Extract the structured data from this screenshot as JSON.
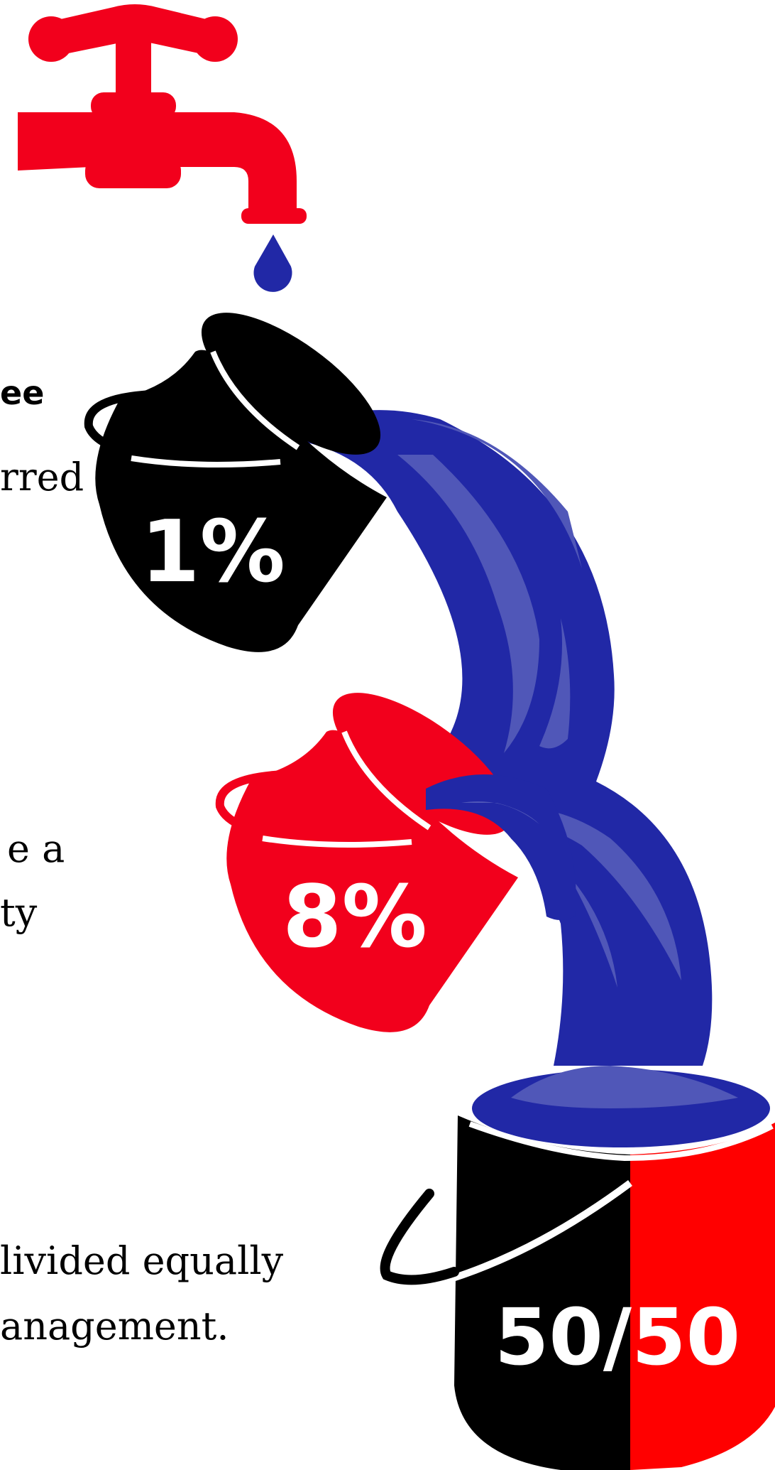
{
  "text_fragments": {
    "line1": "ee",
    "line2": "rred",
    "line3": "e a",
    "line4": "ty",
    "line5": "livided equally",
    "line6": "anagement."
  },
  "buckets": [
    {
      "label": "1%",
      "color": "#000000"
    },
    {
      "label": "8%",
      "color": "#f2001c"
    },
    {
      "label": "50/50",
      "colors": [
        "#000000",
        "#ff0000"
      ]
    }
  ],
  "colors": {
    "faucet": "#f2001c",
    "water": "#2128a6",
    "water_highlight": "#5057b8",
    "drop": "#2128a6"
  },
  "icons": [
    "faucet-icon",
    "water-drop-icon",
    "bucket-icon"
  ]
}
